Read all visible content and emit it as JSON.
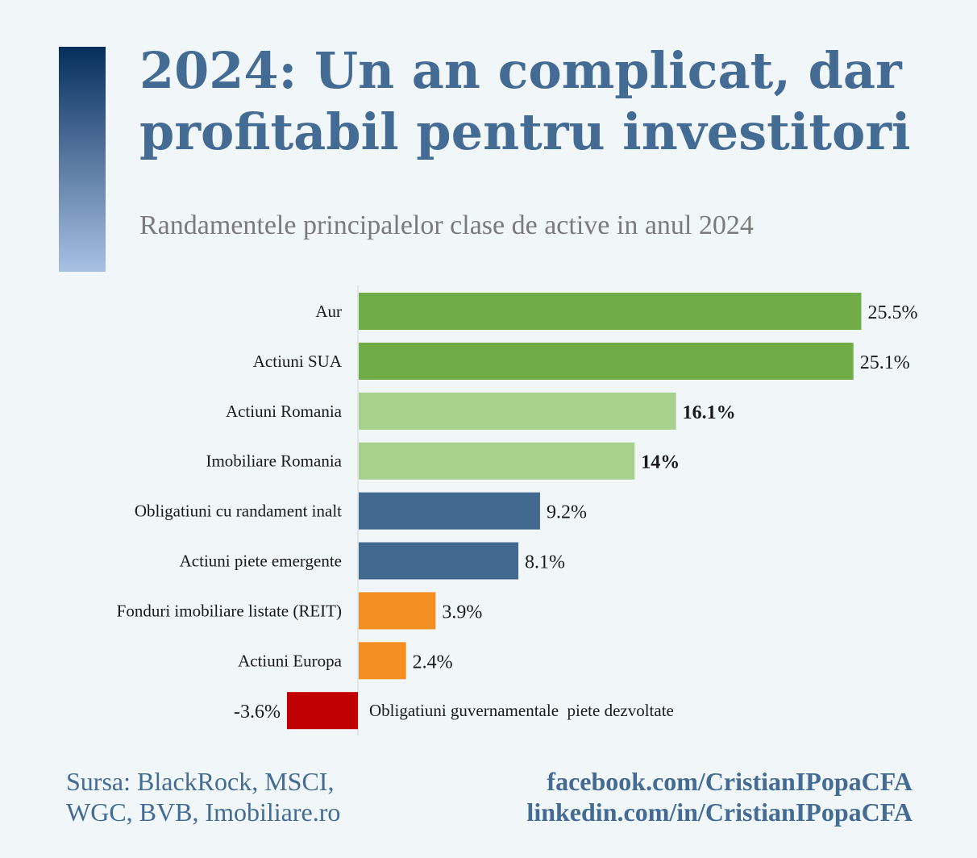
{
  "header": {
    "title": "2024: Un an complicat, dar profitabil pentru investitori",
    "subtitle": "Randamentele principalelor clase de active in anul 2024"
  },
  "colors": {
    "background": "#f1f6f9",
    "title": "#436b94",
    "accent_gradient": [
      "#062e5d",
      "#a8c1e3"
    ],
    "bar_dark_green": "#70ad47",
    "bar_light_green": "#a9d18e",
    "bar_blue": "#426990",
    "bar_orange": "#f38f23",
    "bar_red": "#c00000"
  },
  "chart_data": {
    "type": "bar",
    "orientation": "horizontal",
    "unit": "%",
    "grid": false,
    "categories": [
      "Aur",
      "Actiuni SUA",
      "Actiuni Romania",
      "Imobiliare Romania",
      "Obligatiuni cu randament inalt",
      "Actiuni piete emergente",
      "Fonduri imobiliare listate (REIT)",
      "Actiuni Europa",
      "Obligatiuni guvernamentale  piete dezvoltate"
    ],
    "values": [
      25.5,
      25.1,
      16.1,
      14,
      9.2,
      8.1,
      3.9,
      2.4,
      -3.6
    ],
    "value_labels": [
      "25.5%",
      "25.1%",
      "16.1%",
      "14%",
      "9.2%",
      "8.1%",
      "3.9%",
      "2.4%",
      "-3.6%"
    ],
    "bold_labels": [
      false,
      false,
      true,
      true,
      false,
      false,
      false,
      false,
      false
    ],
    "bar_colors": [
      "#70ad47",
      "#70ad47",
      "#a9d18e",
      "#a9d18e",
      "#426990",
      "#426990",
      "#f38f23",
      "#f38f23",
      "#c00000"
    ],
    "xlim": [
      -3.6,
      25.5
    ]
  },
  "footer": {
    "source_line1": "Sursa: BlackRock, MSCI,",
    "source_line2": "WGC, BVB, Imobiliare.ro",
    "link1": "facebook.com/CristianIPopaCFA",
    "link2": "linkedin.com/in/CristianIPopaCFA"
  }
}
